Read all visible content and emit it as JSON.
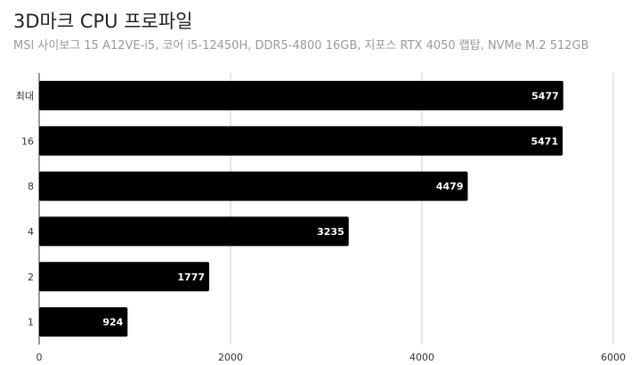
{
  "chart_data": {
    "type": "bar",
    "orientation": "horizontal",
    "title": "3D마크 CPU 프로파일",
    "subtitle": "MSI 사이보그 15 A12VE-i5, 코어 i5-12450H, DDR5-4800 16GB, 지포스 RTX 4050 랩탑, NVMe M.2 512GB",
    "categories": [
      "최대",
      "16",
      "8",
      "4",
      "2",
      "1"
    ],
    "values": [
      5477,
      5471,
      4479,
      3235,
      1777,
      924
    ],
    "xlim": [
      0,
      6000
    ],
    "xticks": [
      0,
      2000,
      4000,
      6000
    ],
    "grid": true,
    "bar_color": "#000000",
    "value_label_color": "#ffffff"
  }
}
